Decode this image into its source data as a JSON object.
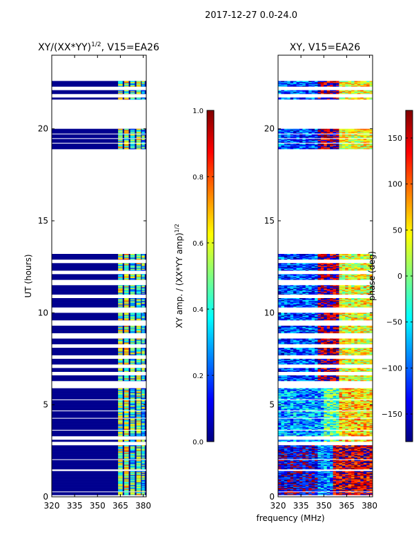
{
  "suptitle": "2017-12-27 0.0-24.0",
  "xlabel_shared": "frequency (MHz)",
  "chart_data": [
    {
      "type": "heatmap",
      "title_main": "XY/(XX*YY)",
      "title_exp": "1/2",
      "title_tail": ", V15=EA26",
      "ylabel": "UT (hours)",
      "xlim": [
        320,
        382
      ],
      "ylim": [
        0,
        24
      ],
      "xticks": [
        320,
        335,
        350,
        365,
        380
      ],
      "yticks": [
        0,
        5,
        10,
        15,
        20
      ],
      "colorbar": {
        "label_main": "XY amp. / (XX*YY amp)",
        "label_exp": "1/2",
        "range": [
          0.0,
          1.0
        ],
        "ticks": [
          0.0,
          0.2,
          0.4,
          0.6,
          0.8,
          1.0
        ],
        "tick_labels": [
          "0.0",
          "0.2",
          "0.4",
          "0.6",
          "0.8",
          "1.0"
        ]
      }
    },
    {
      "type": "heatmap",
      "title": "XY, V15=EA26",
      "xlim": [
        320,
        382
      ],
      "ylim": [
        0,
        24
      ],
      "xticks": [
        320,
        335,
        350,
        365,
        380
      ],
      "yticks": [
        0,
        5,
        10,
        15,
        20
      ],
      "colorbar": {
        "label": "phase (deg)",
        "range": [
          -180,
          180
        ],
        "ticks": [
          -150,
          -100,
          -50,
          0,
          50,
          100,
          150
        ]
      }
    }
  ],
  "data_intervals": [
    [
      0.1,
      2.8
    ],
    [
      3.0,
      3.1
    ],
    [
      3.3,
      5.9
    ],
    [
      6.3,
      6.6
    ],
    [
      6.8,
      7.0
    ],
    [
      7.2,
      7.5
    ],
    [
      7.7,
      8.1
    ],
    [
      8.3,
      8.6
    ],
    [
      8.9,
      9.3
    ],
    [
      9.6,
      10.0
    ],
    [
      10.3,
      10.8
    ],
    [
      11.0,
      11.5
    ],
    [
      11.8,
      12.1
    ],
    [
      12.3,
      12.7
    ],
    [
      12.9,
      13.2
    ],
    [
      18.9,
      20.0
    ],
    [
      21.6,
      21.7
    ],
    [
      21.9,
      22.1
    ],
    [
      22.3,
      22.6
    ]
  ],
  "data_gaps": [
    [
      0.25,
      0.3
    ],
    [
      1.4,
      1.5
    ],
    [
      2.0,
      2.05
    ],
    [
      3.55,
      3.6
    ],
    [
      4.2,
      4.25
    ],
    [
      4.6,
      4.65
    ],
    [
      5.2,
      5.25
    ],
    [
      19.2,
      19.25
    ],
    [
      19.45,
      19.5
    ],
    [
      19.7,
      19.75
    ]
  ],
  "amp_feature_channels": [
    [
      363.5,
      366.5,
      0.5
    ],
    [
      367.5,
      370.5,
      0.55
    ],
    [
      371.5,
      374.5,
      0.42
    ],
    [
      375.5,
      378.5,
      0.5
    ],
    [
      379.0,
      381.0,
      0.4
    ]
  ],
  "colors": {
    "jet": [
      "#000080",
      "#0000ff",
      "#0080ff",
      "#00ffff",
      "#80ff80",
      "#ffff00",
      "#ff8000",
      "#ff0000",
      "#800000"
    ],
    "low_amp": "#00008f"
  }
}
